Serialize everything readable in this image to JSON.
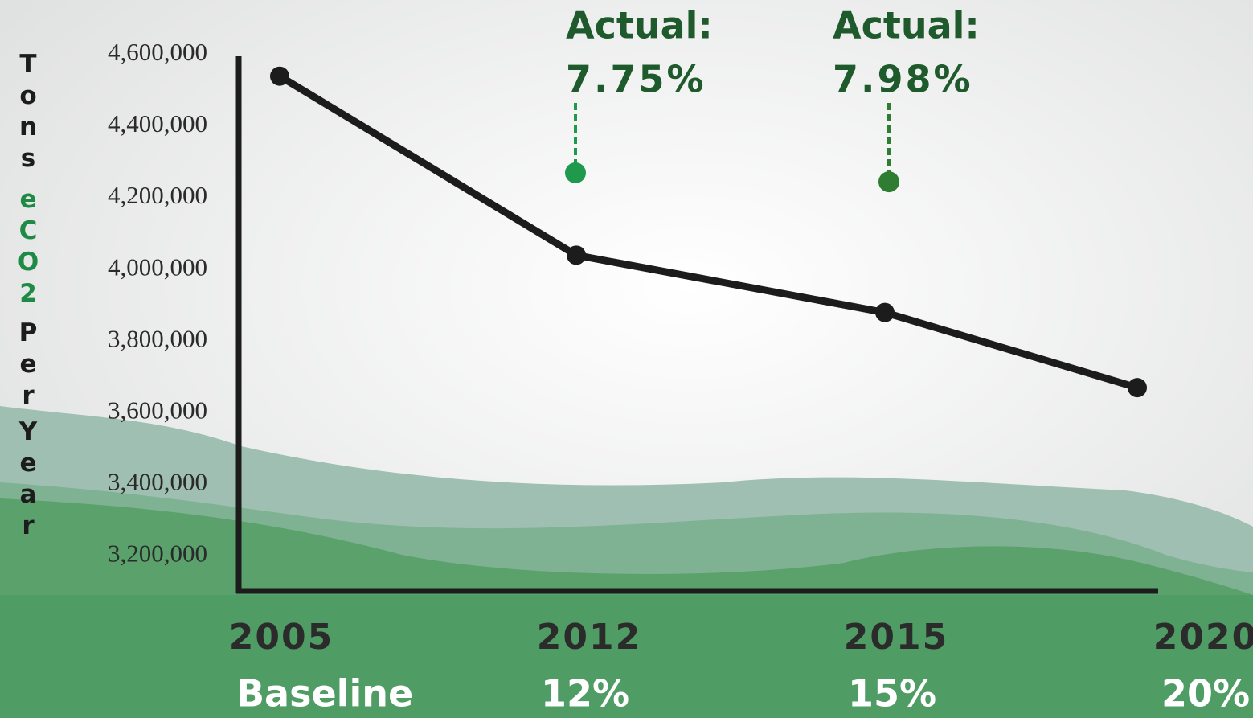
{
  "chart_data": {
    "type": "line",
    "y_label": [
      "Tons",
      "eCO2",
      "Per",
      "Year"
    ],
    "categories": [
      "2005",
      "2012",
      "2015",
      "2020"
    ],
    "targets": [
      "Baseline",
      "12%",
      "15%",
      "20%"
    ],
    "values": [
      4540000,
      4040000,
      3880000,
      3670000
    ],
    "color": "#1c1c1c",
    "ylim": [
      3100000,
      4600000
    ],
    "yticks": [
      {
        "value": 4600000,
        "label": "4,600,000"
      },
      {
        "value": 4400000,
        "label": "4,400,000"
      },
      {
        "value": 4200000,
        "label": "4,200,000"
      },
      {
        "value": 4000000,
        "label": "4,000,000"
      },
      {
        "value": 3800000,
        "label": "3,800,000"
      },
      {
        "value": 3600000,
        "label": "3,600,000"
      },
      {
        "value": 3400000,
        "label": "3,400,000"
      },
      {
        "value": 3200000,
        "label": "3,200,000"
      }
    ],
    "annotations": [
      {
        "text": "Actual:",
        "value_label": "7.75%",
        "category": "2012",
        "y": 4270000,
        "color": "#1f9a4c"
      },
      {
        "text": "Actual:",
        "value_label": "7.98%",
        "category": "2015",
        "y": 4245000,
        "color": "#2e7d32"
      }
    ]
  }
}
